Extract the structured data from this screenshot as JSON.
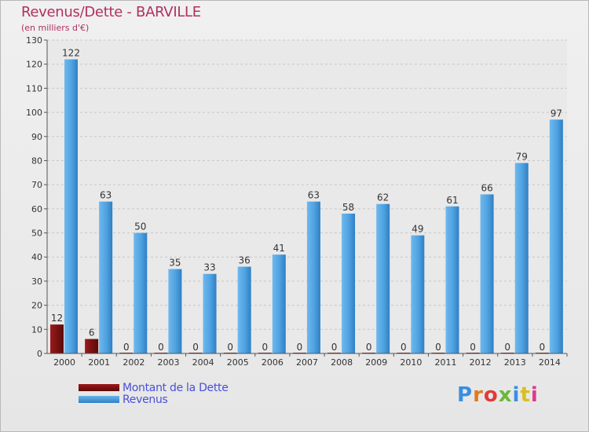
{
  "header": {
    "title": "Revenus/Dette - BARVILLE",
    "subtitle": "(en milliers d'€)"
  },
  "legend": {
    "debt_label": "Montant de la Dette",
    "revenue_label": "Revenus"
  },
  "logo": {
    "text": "Proxiti",
    "letter_colors": [
      "#3a8ee0",
      "#e07a20",
      "#e03a3a",
      "#6ab83a",
      "#3a8ee0",
      "#d8c020",
      "#e03a8a"
    ]
  },
  "colors": {
    "debt_top": "#a01818",
    "debt_bottom": "#5a0a0a",
    "revenue_top": "#6ab4ec",
    "revenue_bottom": "#2f7fc4",
    "title": "#b03060",
    "legend_text": "#4a50d8"
  },
  "chart_data": {
    "type": "bar",
    "title": "Revenus/Dette - BARVILLE",
    "ylabel": "(en milliers d'€)",
    "xlabel": "",
    "ylim": [
      0,
      130
    ],
    "yticks": [
      0,
      10,
      20,
      30,
      40,
      50,
      60,
      70,
      80,
      90,
      100,
      110,
      120,
      130
    ],
    "grid": true,
    "categories": [
      "2000",
      "2001",
      "2002",
      "2003",
      "2004",
      "2005",
      "2006",
      "2007",
      "2008",
      "2009",
      "2010",
      "2011",
      "2012",
      "2013",
      "2014"
    ],
    "series": [
      {
        "name": "Montant de la Dette",
        "values": [
          12,
          6,
          0,
          0,
          0,
          0,
          0,
          0,
          0,
          0,
          0,
          0,
          0,
          0,
          0
        ]
      },
      {
        "name": "Revenus",
        "values": [
          122,
          63,
          50,
          35,
          33,
          36,
          41,
          63,
          58,
          62,
          49,
          61,
          66,
          79,
          97
        ]
      }
    ],
    "legend_position": "bottom-left"
  }
}
